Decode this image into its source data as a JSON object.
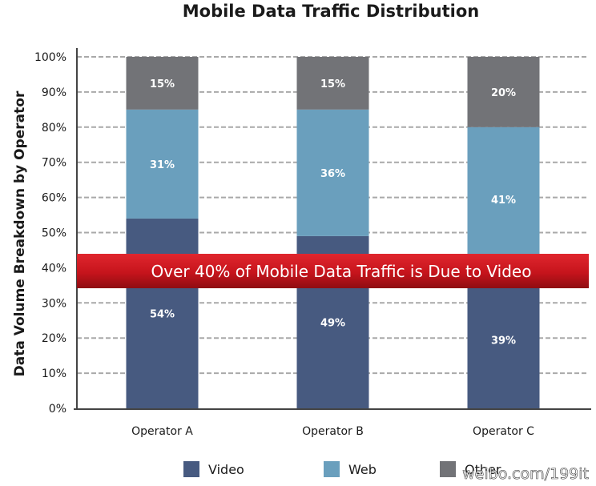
{
  "chart_data": {
    "type": "bar",
    "stacked": true,
    "title": "Mobile Data Traffic Distribution",
    "ylabel": "Data Volume Breakdown by Operator",
    "xlabel": "",
    "ylim": [
      0,
      100
    ],
    "yticks": [
      "0%",
      "10%",
      "20%",
      "30%",
      "40%",
      "50%",
      "60%",
      "70%",
      "80%",
      "90%",
      "100%"
    ],
    "grid": true,
    "legend_position": "bottom",
    "categories": [
      "Operator A",
      "Operator B",
      "Operator C"
    ],
    "series": [
      {
        "name": "Video",
        "color": "#475a80",
        "values": [
          54,
          49,
          39
        ],
        "labels": [
          "54%",
          "49%",
          "39%"
        ]
      },
      {
        "name": "Web",
        "color": "#6a9fbd",
        "values": [
          31,
          36,
          41
        ],
        "labels": [
          "31%",
          "36%",
          "41%"
        ]
      },
      {
        "name": "Other",
        "color": "#727377",
        "values": [
          15,
          15,
          20
        ],
        "labels": [
          "15%",
          "15%",
          "20%"
        ]
      }
    ],
    "annotation": {
      "text": "Over 40% of Mobile Data Traffic is Due to Video",
      "color": "#c6141c"
    }
  },
  "watermark": "weibo.com/199it"
}
